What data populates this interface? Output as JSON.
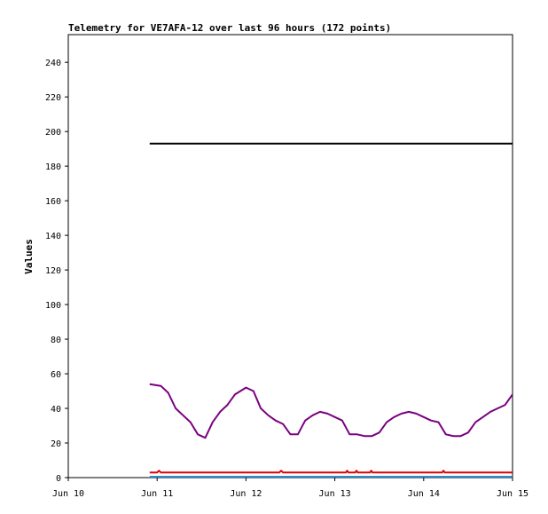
{
  "chart_data": {
    "type": "line",
    "title": "Telemetry for VE7AFA-12 over last 96 hours (172 points)",
    "xlabel": "",
    "ylabel": "Values",
    "xlim": [
      "Jun 10",
      "Jun 15"
    ],
    "ylim": [
      0,
      256
    ],
    "x_ticks": [
      "Jun 10",
      "Jun 11",
      "Jun 12",
      "Jun 13",
      "Jun 14",
      "Jun 15"
    ],
    "y_ticks": [
      0,
      20,
      40,
      60,
      80,
      100,
      120,
      140,
      160,
      180,
      200,
      220,
      240
    ],
    "grid": false,
    "legend": "none",
    "series": [
      {
        "color": "#000000",
        "x": [
          "Jun 10 22:00",
          "Jun 14 23:59"
        ],
        "y": [
          193,
          193
        ]
      },
      {
        "color": "#7a0080",
        "x": [
          "Jun 10 22:00",
          "Jun 11 01:00",
          "Jun 11 03:00",
          "Jun 11 05:00",
          "Jun 11 07:00",
          "Jun 11 09:00",
          "Jun 11 11:00",
          "Jun 11 13:00",
          "Jun 11 15:00",
          "Jun 11 17:00",
          "Jun 11 19:00",
          "Jun 11 21:00",
          "Jun 12 00:00",
          "Jun 12 02:00",
          "Jun 12 04:00",
          "Jun 12 06:00",
          "Jun 12 08:00",
          "Jun 12 10:00",
          "Jun 12 12:00",
          "Jun 12 14:00",
          "Jun 12 16:00",
          "Jun 12 18:00",
          "Jun 12 20:00",
          "Jun 12 22:00",
          "Jun 13 00:00",
          "Jun 13 02:00",
          "Jun 13 04:00",
          "Jun 13 06:00",
          "Jun 13 08:00",
          "Jun 13 10:00",
          "Jun 13 12:00",
          "Jun 13 14:00",
          "Jun 13 16:00",
          "Jun 13 18:00",
          "Jun 13 20:00",
          "Jun 13 22:00",
          "Jun 14 00:00",
          "Jun 14 02:00",
          "Jun 14 04:00",
          "Jun 14 06:00",
          "Jun 14 08:00",
          "Jun 14 10:00",
          "Jun 14 12:00",
          "Jun 14 14:00",
          "Jun 14 16:00",
          "Jun 14 18:00",
          "Jun 14 20:00",
          "Jun 14 22:00",
          "Jun 14 23:59"
        ],
        "y": [
          54,
          53,
          49,
          40,
          36,
          32,
          25,
          23,
          32,
          38,
          42,
          48,
          52,
          50,
          40,
          36,
          33,
          31,
          25,
          25,
          33,
          36,
          38,
          37,
          35,
          33,
          25,
          25,
          24,
          24,
          26,
          32,
          35,
          37,
          38,
          37,
          35,
          33,
          32,
          25,
          24,
          24,
          26,
          32,
          35,
          38,
          40,
          42,
          48
        ]
      },
      {
        "color": "#e00000",
        "x": [
          "Jun 10 22:00",
          "Jun 11 00:00",
          "Jun 11 00:30",
          "Jun 11 01:00",
          "Jun 12 09:00",
          "Jun 12 09:30",
          "Jun 12 10:00",
          "Jun 13 03:00",
          "Jun 13 03:20",
          "Jun 13 03:40",
          "Jun 13 05:30",
          "Jun 13 05:50",
          "Jun 13 06:10",
          "Jun 13 09:30",
          "Jun 13 09:50",
          "Jun 13 10:10",
          "Jun 14 05:00",
          "Jun 14 05:20",
          "Jun 14 05:40",
          "Jun 14 23:59"
        ],
        "y": [
          3,
          3,
          4,
          3,
          3,
          4,
          3,
          3,
          4,
          3,
          3,
          4,
          3,
          3,
          4,
          3,
          3,
          4,
          3,
          3
        ]
      },
      {
        "color": "#2a8ccf",
        "x": [
          "Jun 10 22:00",
          "Jun 14 23:59"
        ],
        "y": [
          0.5,
          0.5
        ]
      }
    ]
  }
}
